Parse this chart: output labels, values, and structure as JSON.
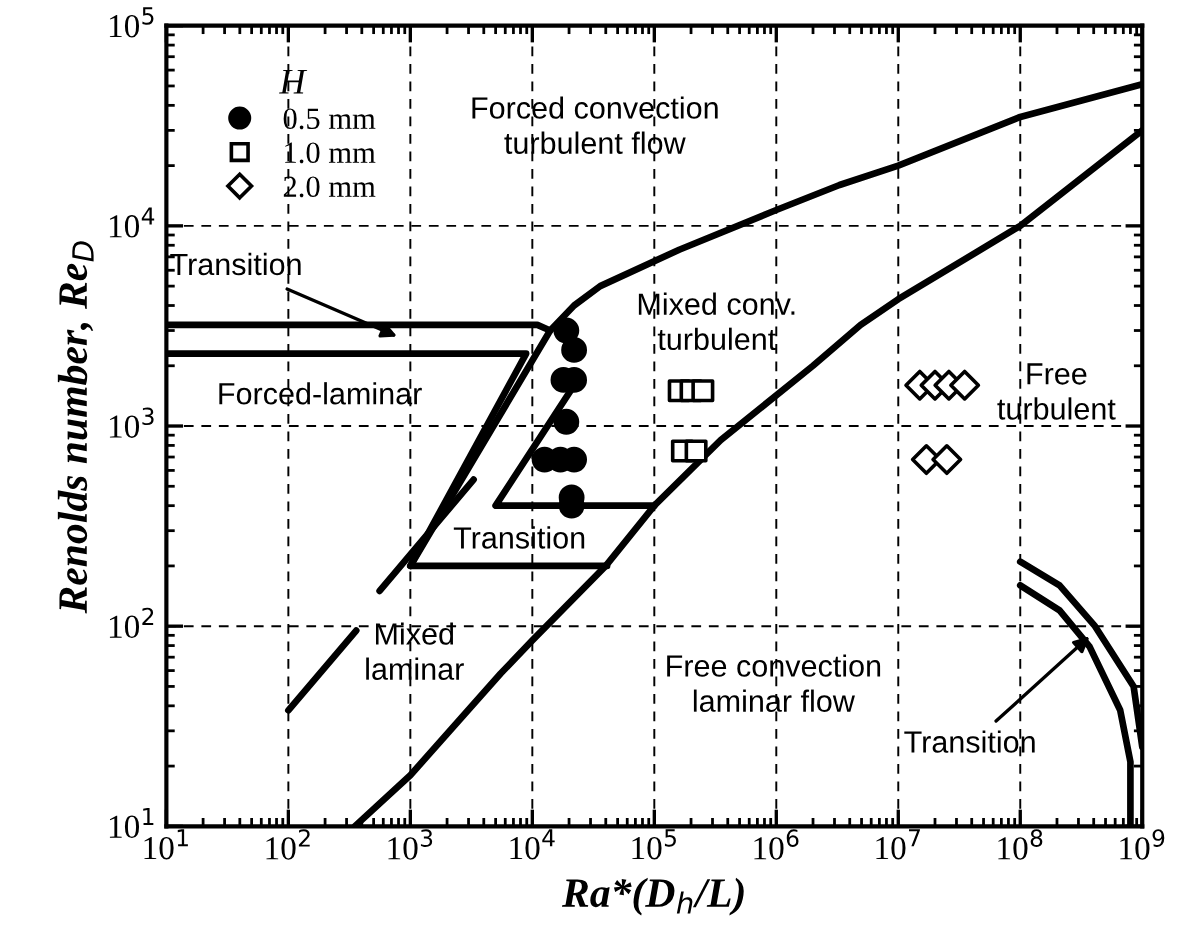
{
  "chart_data": {
    "type": "line",
    "xlabel": "Ra*(D$_{h}$/L)",
    "ylabel": "Renolds number, Re$_{D}$",
    "legend_title": "H",
    "log": "xy",
    "grid": true,
    "legend": "top left",
    "line_style": "solid",
    "marker": "none",
    "xlim": [
      10,
      1000000000
    ],
    "ylim": [
      10,
      100000
    ],
    "xticks": [
      {
        "value": 10,
        "label": "10$^{1}$"
      },
      {
        "value": 100,
        "label": "10$^{2}$"
      },
      {
        "value": 1000,
        "label": "10$^{3}$"
      },
      {
        "value": 10000,
        "label": "10$^{4}$"
      },
      {
        "value": 100000,
        "label": "10$^{5}$"
      },
      {
        "value": 1000000,
        "label": "10$^{6}$"
      },
      {
        "value": 10000000,
        "label": "10$^{7}$"
      },
      {
        "value": 100000000,
        "label": "10$^{8}$"
      },
      {
        "value": 1000000000,
        "label": "10$^{9}$"
      }
    ],
    "yticks": [
      {
        "value": 10,
        "label": "10$^{1}$"
      },
      {
        "value": 100,
        "label": "10$^{2}$"
      },
      {
        "value": 1000,
        "label": "10$^{3}$"
      },
      {
        "value": 10000,
        "label": "10$^{4}$"
      },
      {
        "value": 100000,
        "label": "10$^{5}$"
      }
    ],
    "series": [
      {
        "color": "#000000",
        "x": [
          1000000000,
          100000000,
          10000000,
          3300000,
          1000000,
          160000,
          36000,
          22000,
          14000,
          1000
        ],
        "values": [
          51000,
          35000,
          20000,
          16000,
          12000,
          7600,
          5000,
          4000,
          3000,
          200
        ]
      },
      {
        "color": "#000000",
        "x": [
          10,
          11000,
          14000
        ],
        "values": [
          3200,
          3200,
          3000
        ]
      },
      {
        "color": "#000000",
        "x": [
          10,
          8900,
          1000,
          41000
        ],
        "values": [
          2300,
          2300,
          200,
          200
        ]
      },
      {
        "color": "#000000",
        "x": [
          25000,
          5000,
          100000
        ],
        "values": [
          1800,
          400,
          400
        ]
      },
      {
        "color": "#000000",
        "x": [
          1000000000,
          100000000,
          10000000,
          4900000,
          2000000,
          350000,
          100000,
          40000,
          10000,
          5500,
          1000,
          350
        ],
        "values": [
          30000,
          10000,
          4300,
          3200,
          2000,
          850,
          400,
          200,
          85,
          58,
          18,
          10
        ]
      },
      {
        "color": "#000000",
        "x": [
          3300,
          560,
          null,
          360,
          100
        ],
        "values": [
          540,
          150,
          null,
          95,
          38
        ]
      },
      {
        "color": "#000000",
        "x": [
          100000000,
          210000000,
          410000000,
          850000000,
          1000000000
        ],
        "values": [
          210,
          160,
          100,
          50,
          25
        ]
      },
      {
        "color": "#000000",
        "x": [
          100000000,
          210000000,
          370000000,
          660000000,
          800000000,
          800000000
        ],
        "values": [
          160,
          120,
          79,
          38,
          21,
          10
        ]
      },
      {
        "type": "scatter",
        "name": "0.5 mm",
        "marker": "circle",
        "color": "#000000",
        "x": [
          19000,
          22000,
          18000,
          22000,
          19000,
          12600,
          17000,
          22000,
          21000,
          21000
        ],
        "values": [
          3000,
          2400,
          1700,
          1700,
          1050,
          680,
          680,
          680,
          440,
          400
        ]
      },
      {
        "type": "scatter",
        "name": "1.0 mm",
        "marker": "square",
        "color": "#000000",
        "x": [
          160000,
          200000,
          250000,
          170000,
          220000
        ],
        "values": [
          1500,
          1500,
          1500,
          750,
          750
        ]
      },
      {
        "type": "scatter",
        "name": "2.0 mm",
        "marker": "diamond",
        "color": "#000000",
        "x": [
          15000000,
          20000000,
          26000000,
          35000000,
          17000000,
          25000000
        ],
        "values": [
          1600,
          1600,
          1600,
          1600,
          680,
          680
        ]
      }
    ],
    "annotations": [
      "Forced convection\nturbulent flow",
      {
        "text": "Transition",
        "x": 780,
        "y": 2800
      },
      "Forced-laminar",
      "Mixed conv.\nturbulent",
      "Free\nturbulent",
      "Transition",
      "Mixed\nlaminar",
      "Free convection\nlaminar flow",
      {
        "text": "Transition",
        "x": 370000000,
        "y": 89
      }
    ]
  }
}
